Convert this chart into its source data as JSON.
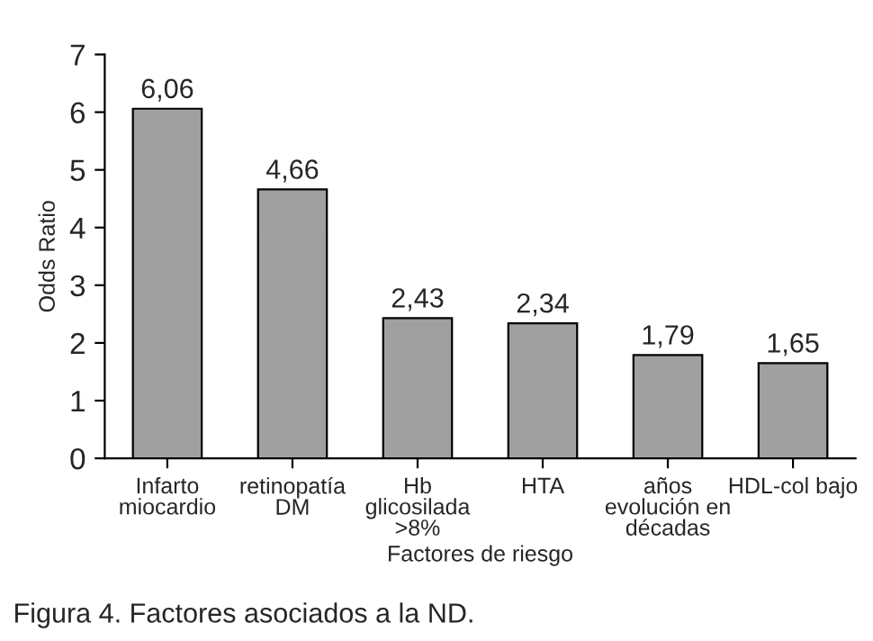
{
  "chart_data": {
    "type": "bar",
    "xlabel": "Factores de riesgo",
    "ylabel": "Odds Ratio",
    "categories": [
      "Infarto\nmiocardio",
      "retinopatía\nDM",
      "Hb\nglicosilada\n>8%",
      "HTA",
      "años\nevolución en\ndécadas",
      "HDL-col bajo"
    ],
    "values": [
      6.06,
      4.66,
      2.43,
      2.34,
      1.79,
      1.65
    ],
    "value_labels": [
      "6,06",
      "4,66",
      "2,43",
      "2,34",
      "1,79",
      "1,65"
    ],
    "color": "#a0a0a0",
    "ylim": [
      0,
      7
    ],
    "yticks": [
      0,
      1,
      2,
      3,
      4,
      5,
      6,
      7
    ],
    "grid": false,
    "legend": false,
    "annotations": [
      "Figura 4. Factores asociados a la ND."
    ]
  }
}
